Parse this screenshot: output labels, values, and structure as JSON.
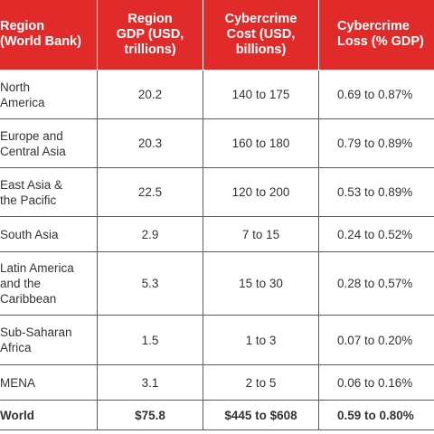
{
  "table": {
    "headers": [
      [
        "Region",
        "(World Bank)"
      ],
      [
        "Region",
        "GDP (USD,",
        "trillions)"
      ],
      [
        "Cybercrime",
        "Cost (USD,",
        "billions)"
      ],
      [
        "Cybercrime",
        "Loss (% GDP)"
      ]
    ],
    "rows": [
      {
        "region": [
          "North",
          "America"
        ],
        "gdp": "20.2",
        "cost": "140 to 175",
        "loss": "0.69 to 0.87%"
      },
      {
        "region": [
          "Europe and",
          "Central Asia"
        ],
        "gdp": "20.3",
        "cost": "160 to 180",
        "loss": "0.79 to 0.89%"
      },
      {
        "region": [
          "East Asia &",
          "the Pacific"
        ],
        "gdp": "22.5",
        "cost": "120 to 200",
        "loss": "0.53 to 0.89%"
      },
      {
        "region": [
          "South Asia"
        ],
        "gdp": "2.9",
        "cost": "7 to 15",
        "loss": "0.24 to 0.52%"
      },
      {
        "region": [
          "Latin America",
          "and the",
          "Caribbean"
        ],
        "gdp": "5.3",
        "cost": "15 to 30",
        "loss": "0.28 to 0.57%"
      },
      {
        "region": [
          "Sub-Saharan",
          "Africa"
        ],
        "gdp": "1.5",
        "cost": "1 to 3",
        "loss": "0.07 to 0.20%"
      },
      {
        "region": [
          "MENA"
        ],
        "gdp": "3.1",
        "cost": "2 to 5",
        "loss": "0.06 to 0.16%"
      }
    ],
    "total": {
      "region": "World",
      "gdp": "$75.8",
      "cost": "$445 to $608",
      "loss": "0.59 to 0.80%"
    }
  }
}
